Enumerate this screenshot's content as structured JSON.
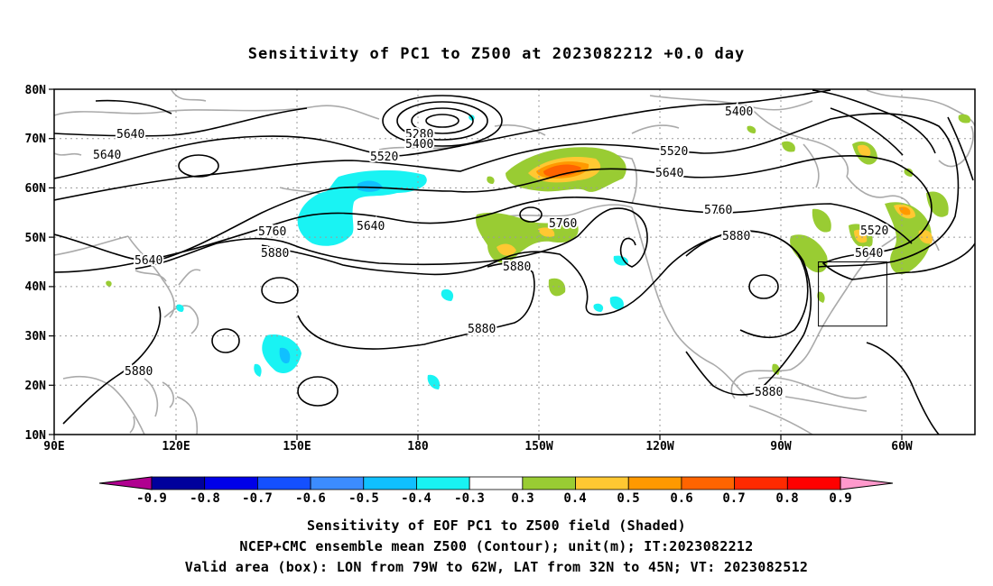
{
  "title": "Sensitivity of PC1 to Z500 at 2023082212 +0.0 day",
  "lat_labels": [
    "80N",
    "70N",
    "60N",
    "50N",
    "40N",
    "30N",
    "20N",
    "10N"
  ],
  "lon_labels": [
    "90E",
    "120E",
    "150E",
    "180",
    "150W",
    "120W",
    "90W",
    "60W"
  ],
  "contour_labels": [
    "5280",
    "5400",
    "5400",
    "5520",
    "5520",
    "5520",
    "5640",
    "5640",
    "5640",
    "5640",
    "5640",
    "5640",
    "5760",
    "5760",
    "5760",
    "5880",
    "5880",
    "5880",
    "5880",
    "5880",
    "5880"
  ],
  "colorbar": {
    "ticks": [
      "-0.9",
      "-0.8",
      "-0.7",
      "-0.6",
      "-0.5",
      "-0.4",
      "-0.3",
      "0.3",
      "0.4",
      "0.5",
      "0.6",
      "0.7",
      "0.8",
      "0.9"
    ],
    "colors": [
      "#b00090",
      "#00009c",
      "#0000e8",
      "#1450ff",
      "#3c8cff",
      "#10c0ff",
      "#19f3f3",
      "#ffffff",
      "#99cc33",
      "#ffc832",
      "#ff9900",
      "#ff6400",
      "#ff2a00",
      "#ff0000",
      "#ff99cc"
    ]
  },
  "valid_box": {
    "lon_range": [
      "79W",
      "62W"
    ],
    "lat_range": [
      "32N",
      "45N"
    ]
  },
  "caption": {
    "line1": "Sensitivity of EOF PC1 to Z500 field (Shaded)",
    "line2": "NCEP+CMC ensemble mean Z500 (Contour); unit(m); IT:2023082212",
    "line3": "Valid area (box): LON from 79W to 62W, LAT from 32N to 45N; VT: 2023082512"
  }
}
